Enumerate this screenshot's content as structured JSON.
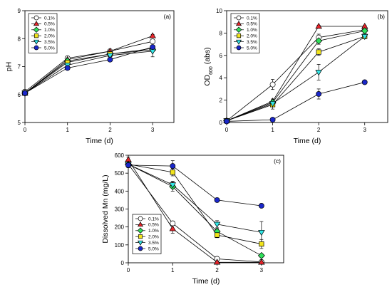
{
  "legend_labels": [
    "0.1%",
    "0.5%",
    "1.0%",
    "2.0%",
    "3.5%",
    "5.0%"
  ],
  "series_styles": [
    {
      "marker": "circle",
      "fill": "#ffffff",
      "stroke": "#000000"
    },
    {
      "marker": "triangle-up",
      "fill": "#e8242a",
      "stroke": "#000000"
    },
    {
      "marker": "diamond",
      "fill": "#2ee05a",
      "stroke": "#000000"
    },
    {
      "marker": "square",
      "fill": "#f2e41c",
      "stroke": "#000000"
    },
    {
      "marker": "triangle-down",
      "fill": "#33e6e6",
      "stroke": "#000000"
    },
    {
      "marker": "circle",
      "fill": "#1a27c9",
      "stroke": "#000000"
    }
  ],
  "chart_data": [
    {
      "panel": "(a)",
      "type": "line",
      "xlabel": "Time (d)",
      "ylabel": "pH",
      "ylabel_sub": "",
      "ylabel_suffix": "",
      "x": [
        0,
        1,
        2,
        3
      ],
      "xlim": [
        0,
        3.5
      ],
      "ylim": [
        5,
        9
      ],
      "xticks": [
        "0",
        "1",
        "2",
        "3"
      ],
      "yticks": [
        "5",
        "6",
        "7",
        "8",
        "9"
      ],
      "legend_position": "top-left",
      "series": [
        {
          "name": "0.1%",
          "values": [
            6.1,
            7.3,
            7.55,
            7.9
          ],
          "errors": [
            0.08,
            0.05,
            0.05,
            0.05
          ]
        },
        {
          "name": "0.5%",
          "values": [
            6.05,
            7.25,
            7.55,
            8.1
          ],
          "errors": [
            0.08,
            0.05,
            0.05,
            0.05
          ]
        },
        {
          "name": "1.0%",
          "values": [
            6.05,
            7.2,
            7.45,
            7.6
          ],
          "errors": [
            0.08,
            0.05,
            0.05,
            0.05
          ]
        },
        {
          "name": "2.0%",
          "values": [
            6.05,
            7.15,
            7.45,
            7.65
          ],
          "errors": [
            0.08,
            0.05,
            0.05,
            0.05
          ]
        },
        {
          "name": "3.5%",
          "values": [
            6.05,
            7.05,
            7.4,
            7.55
          ],
          "errors": [
            0.08,
            0.05,
            0.05,
            0.2
          ]
        },
        {
          "name": "5.0%",
          "values": [
            6.05,
            6.95,
            7.25,
            7.7
          ],
          "errors": [
            0.08,
            0.05,
            0.05,
            0.05
          ]
        }
      ]
    },
    {
      "panel": "(b)",
      "type": "line",
      "xlabel": "Time (d)",
      "ylabel": "OD",
      "ylabel_sub": "600",
      "ylabel_suffix": " (abs)",
      "x": [
        0,
        1,
        2,
        3
      ],
      "xlim": [
        0,
        3.5
      ],
      "ylim": [
        0,
        10
      ],
      "xticks": [
        "0",
        "1",
        "2",
        "3"
      ],
      "yticks": [
        "0",
        "2",
        "4",
        "6",
        "8",
        "10"
      ],
      "legend_position": "top-left",
      "series": [
        {
          "name": "0.1%",
          "values": [
            0.15,
            3.4,
            7.6,
            8.3
          ],
          "errors": [
            0.05,
            0.45,
            0.3,
            0.1
          ]
        },
        {
          "name": "0.5%",
          "values": [
            0.15,
            1.9,
            8.6,
            8.6
          ],
          "errors": [
            0.05,
            0.2,
            0.1,
            0.1
          ]
        },
        {
          "name": "1.0%",
          "values": [
            0.15,
            1.8,
            7.3,
            8.2
          ],
          "errors": [
            0.05,
            0.2,
            0.3,
            0.2
          ]
        },
        {
          "name": "2.0%",
          "values": [
            0.15,
            1.6,
            6.3,
            7.7
          ],
          "errors": [
            0.05,
            0.4,
            0.3,
            0.2
          ]
        },
        {
          "name": "3.5%",
          "values": [
            0.15,
            1.7,
            4.5,
            7.7
          ],
          "errors": [
            0.05,
            0.3,
            0.7,
            0.2
          ]
        },
        {
          "name": "5.0%",
          "values": [
            0.1,
            0.25,
            2.55,
            3.6
          ],
          "errors": [
            0.05,
            0.05,
            0.45,
            0.1
          ]
        }
      ]
    },
    {
      "panel": "(c)",
      "type": "line",
      "xlabel": "Time (d)",
      "ylabel": "Dissolved Mn (mg/L)",
      "ylabel_sub": "",
      "ylabel_suffix": "",
      "x": [
        0,
        1,
        2,
        3
      ],
      "xlim": [
        0,
        3.5
      ],
      "ylim": [
        0,
        600
      ],
      "xticks": [
        "0",
        "1",
        "2",
        "3"
      ],
      "yticks": [
        "0",
        "100",
        "200",
        "300",
        "400",
        "500",
        "600"
      ],
      "legend_position": "bottom-left",
      "series": [
        {
          "name": "0.1%",
          "values": [
            550,
            220,
            22,
            5
          ],
          "errors": [
            15,
            12,
            5,
            3
          ]
        },
        {
          "name": "0.5%",
          "values": [
            575,
            190,
            3,
            3
          ],
          "errors": [
            15,
            25,
            3,
            3
          ]
        },
        {
          "name": "1.0%",
          "values": [
            550,
            425,
            175,
            40
          ],
          "errors": [
            15,
            25,
            15,
            10
          ]
        },
        {
          "name": "2.0%",
          "values": [
            550,
            505,
            155,
            105
          ],
          "errors": [
            15,
            20,
            15,
            25
          ]
        },
        {
          "name": "3.5%",
          "values": [
            550,
            435,
            215,
            170
          ],
          "errors": [
            15,
            20,
            20,
            60
          ]
        },
        {
          "name": "5.0%",
          "values": [
            545,
            540,
            350,
            318
          ],
          "errors": [
            15,
            30,
            5,
            5
          ]
        }
      ]
    }
  ]
}
